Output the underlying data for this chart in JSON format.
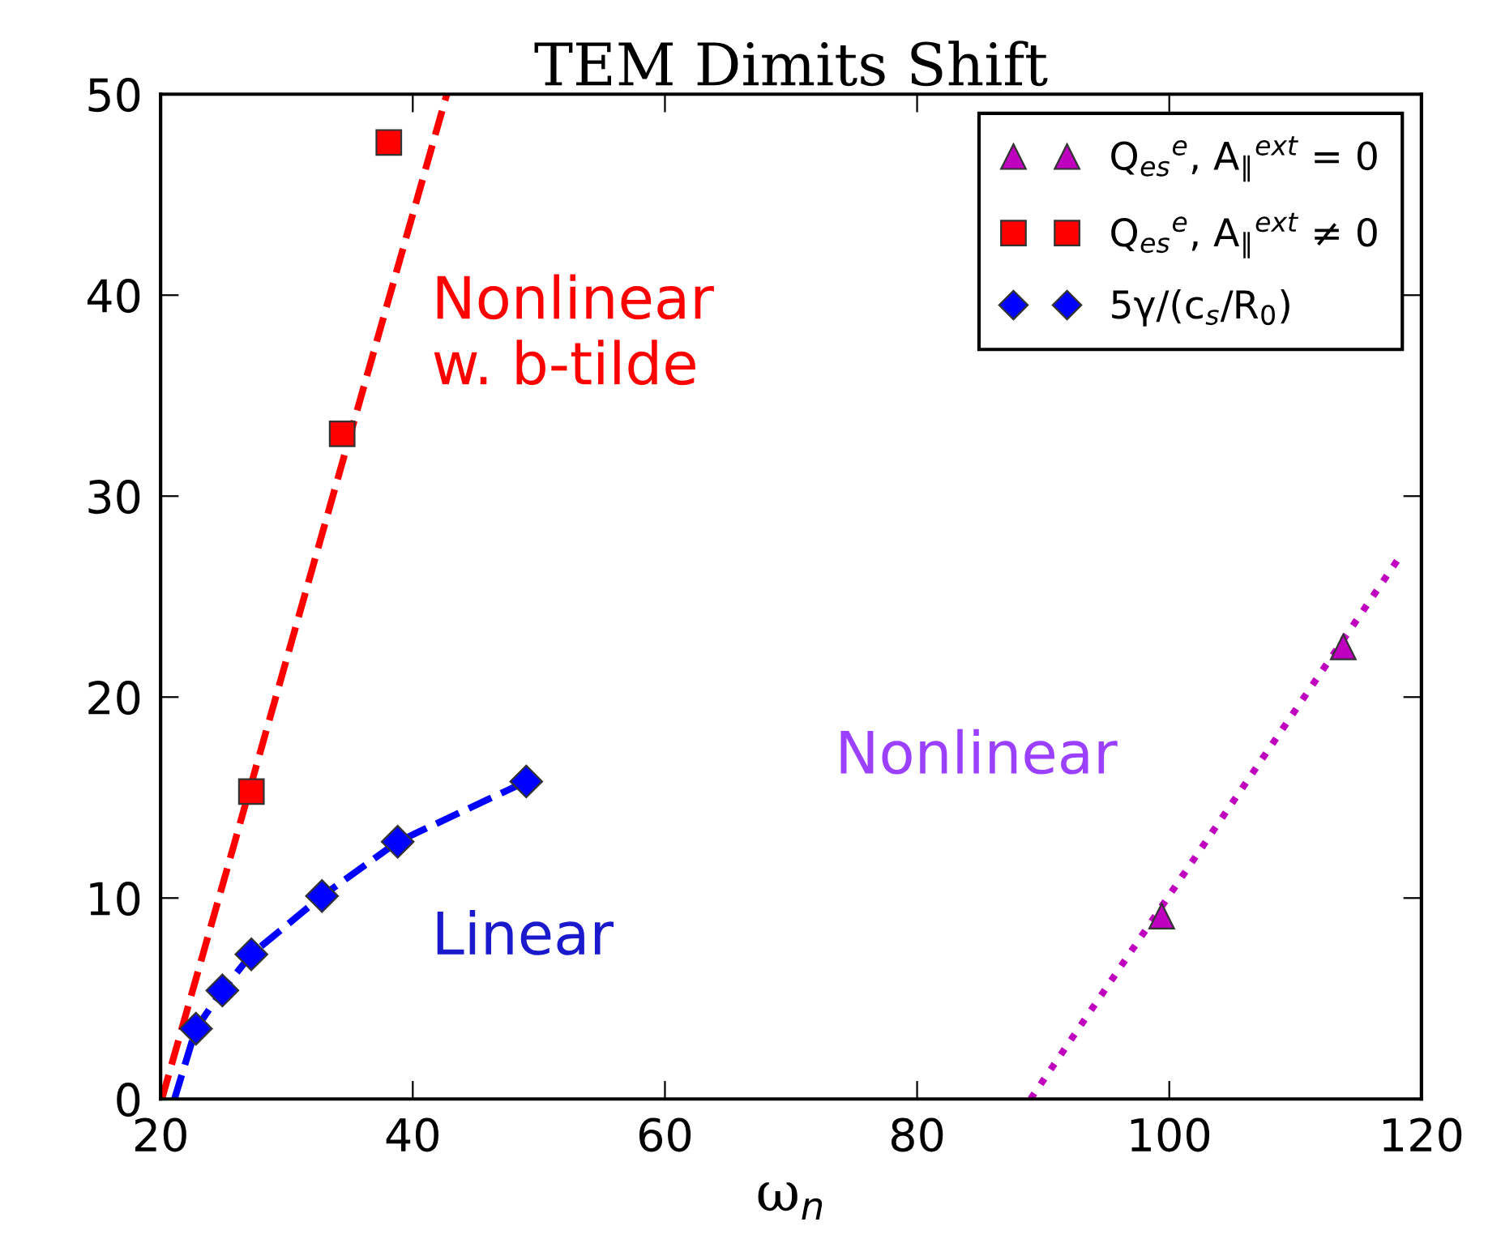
{
  "chart_data": {
    "type": "scatter",
    "title": "TEM Dimits Shift",
    "xlabel": "ω$_{n}$",
    "xlim": [
      20,
      120
    ],
    "xticks": [
      20,
      40,
      60,
      80,
      100,
      120
    ],
    "ylim": [
      0,
      50
    ],
    "yticks": [
      0,
      10,
      20,
      30,
      40,
      50
    ],
    "grid": false,
    "legend": "top right",
    "series": [
      {
        "name": "Q$_{es}$$^{e}$, A$_{∥}$$^{ext}$ = 0",
        "marker": "triangle",
        "color": "#bf00bf",
        "x": [
          99.4,
          113.8
        ],
        "values": [
          9.1,
          22.5
        ]
      },
      {
        "name": "Q$_{es}$$^{e}$, A$_{∥}$$^{ext}$ ≠ 0",
        "marker": "square",
        "color": "#ff0000",
        "x": [
          27.2,
          34.4,
          38.1
        ],
        "values": [
          15.3,
          33.1,
          47.6
        ]
      },
      {
        "name": "5γ/(c$_{s}$/R$_{0}$)",
        "marker": "diamond",
        "color": "#0000ff",
        "x": [
          22.8,
          24.9,
          27.2,
          32.8,
          38.8,
          49.0
        ],
        "values": [
          3.5,
          5.4,
          7.2,
          10.1,
          12.8,
          15.8
        ]
      },
      {
        "type": "line",
        "line_style": "dashed",
        "color": "#ff0000",
        "x": [
          20.1,
          42.7
        ],
        "values": [
          0,
          50
        ]
      },
      {
        "type": "line",
        "line_style": "dashed",
        "color": "#0000ff",
        "x": [
          21.1,
          22.8,
          24.9,
          27.2,
          32.8,
          38.8,
          49.0
        ],
        "values": [
          0,
          3.5,
          5.4,
          7.2,
          10.1,
          12.8,
          15.8
        ]
      },
      {
        "type": "line",
        "line_style": "dotted",
        "color": "#bf00bf",
        "x": [
          89.0,
          118.3
        ],
        "values": [
          0,
          27.0
        ]
      }
    ],
    "annotations": [
      "Nonlinear\nw. b-tilde",
      "Linear",
      "Nonlinear"
    ]
  }
}
